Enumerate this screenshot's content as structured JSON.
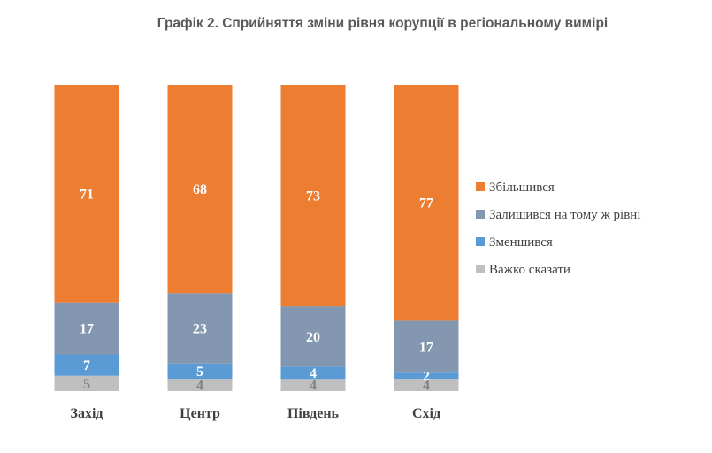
{
  "chart_data": {
    "type": "bar",
    "stacked": true,
    "title": "Графік 2. Сприйняття зміни рівня корупції в регіональному вимірі",
    "categories": [
      "Захід",
      "Центр",
      "Південь",
      "Схід"
    ],
    "series": [
      {
        "name": "Важко сказати",
        "color": "#bfbfbf",
        "label_color": "#7f7f7f",
        "values": [
          5,
          4,
          4,
          4
        ]
      },
      {
        "name": "Зменшився",
        "color": "#5b9bd5",
        "label_color": "#ffffff",
        "values": [
          7,
          5,
          4,
          2
        ]
      },
      {
        "name": "Залишився на тому ж рівні",
        "color": "#8497b0",
        "label_color": "#ffffff",
        "values": [
          17,
          23,
          20,
          17
        ]
      },
      {
        "name": "Збільшився",
        "color": "#ed7d31",
        "label_color": "#ffffff",
        "values": [
          71,
          68,
          73,
          77
        ]
      }
    ],
    "legend_order": [
      "Збільшився",
      "Залишився на тому ж рівні",
      "Зменшився",
      "Важко сказати"
    ],
    "legend_position": "right",
    "ylim": [
      0,
      100
    ],
    "grid": false
  }
}
